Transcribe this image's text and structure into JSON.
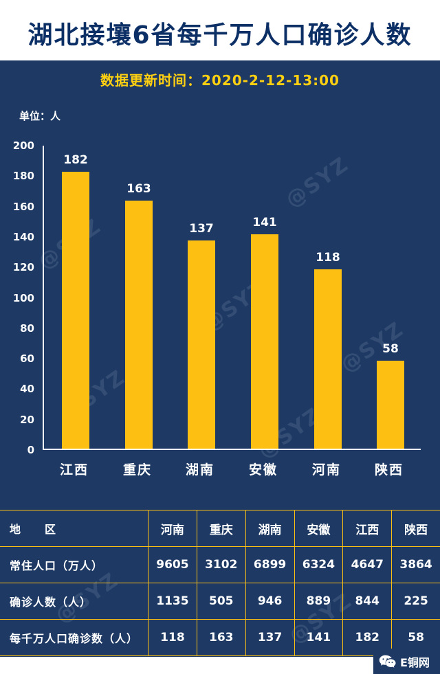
{
  "title": "湖北接壤6省每千万人口确诊人数",
  "subtitle": "数据更新时间：2020-2-12-13:00",
  "unit_label": "单位：人",
  "watermark": "@SYZ",
  "colors": {
    "background": "#1e3a64",
    "bar": "#fcbf12",
    "subtitle": "#ffd012",
    "title": "#0c2f66",
    "text": "#ffffff"
  },
  "chart_data": {
    "type": "bar",
    "title": "湖北接壤6省每千万人口确诊人数",
    "categories": [
      "江西",
      "重庆",
      "湖南",
      "安徽",
      "河南",
      "陕西"
    ],
    "values": [
      182,
      163,
      137,
      141,
      118,
      58
    ],
    "xlabel": "",
    "ylabel": "单位：人",
    "ylim": [
      0,
      200
    ],
    "ytick_step": 20,
    "grid": false,
    "legend": "none",
    "bar_color": "#fcbf12"
  },
  "table": {
    "header": [
      "地　　区",
      "河南",
      "重庆",
      "湖南",
      "安徽",
      "江西",
      "陕西"
    ],
    "rows": [
      {
        "label": "常住人口（万人）",
        "values": [
          "9605",
          "3102",
          "6899",
          "6324",
          "4647",
          "3864"
        ]
      },
      {
        "label": "确诊人数（人）",
        "values": [
          "1135",
          "505",
          "946",
          "889",
          "844",
          "225"
        ]
      },
      {
        "label": "每千万人口确诊数（人）",
        "values": [
          "118",
          "163",
          "137",
          "141",
          "182",
          "58"
        ]
      }
    ]
  },
  "footer": {
    "brand": "E铜网"
  }
}
